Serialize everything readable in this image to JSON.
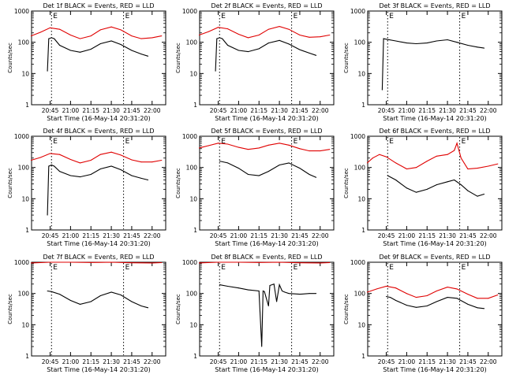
{
  "xlabel": "Start Time (16-May-14 20:31:20)",
  "ylabel": "Counts/sec",
  "xticks": [
    "20:45",
    "21:00",
    "21:15",
    "21:30",
    "21:45",
    "22:00"
  ],
  "yticks": [
    "1",
    "10",
    "100",
    "1000"
  ],
  "marker_label": "E",
  "colors": {
    "events": "#000000",
    "lld": "#e00000",
    "axes": "#000000"
  },
  "chart_data": [
    {
      "type": "line",
      "title": "Det 1f BLACK = Events, RED = LLD",
      "ylim": [
        1,
        1000
      ],
      "yscale": "log",
      "time_range": [
        "20:31:20",
        "22:10:00"
      ],
      "markers": [
        "20:46",
        "21:39"
      ],
      "series": [
        {
          "name": "LLD",
          "color": "#e00000",
          "x": [
            "20:31",
            "20:38",
            "20:45",
            "20:52",
            "21:00",
            "21:07",
            "21:15",
            "21:22",
            "21:30",
            "21:37",
            "21:45",
            "21:52",
            "22:00",
            "22:07"
          ],
          "values": [
            160,
            210,
            290,
            260,
            170,
            130,
            160,
            250,
            310,
            250,
            160,
            130,
            140,
            160
          ]
        },
        {
          "name": "Events",
          "color": "#000000",
          "x": [
            "20:43",
            "20:44",
            "20:46",
            "20:48",
            "20:52",
            "21:00",
            "21:07",
            "21:15",
            "21:22",
            "21:30",
            "21:37",
            "21:45",
            "21:52",
            "21:57"
          ],
          "values": [
            12,
            130,
            140,
            130,
            80,
            55,
            48,
            60,
            90,
            110,
            85,
            55,
            42,
            36
          ]
        }
      ]
    },
    {
      "type": "line",
      "title": "Det 2f BLACK = Events, RED = LLD",
      "ylim": [
        1,
        1000
      ],
      "yscale": "log",
      "time_range": [
        "20:31:20",
        "22:10:00"
      ],
      "markers": [
        "20:46",
        "21:39"
      ],
      "series": [
        {
          "name": "LLD",
          "color": "#e00000",
          "x": [
            "20:31",
            "20:38",
            "20:45",
            "20:52",
            "21:00",
            "21:07",
            "21:15",
            "21:22",
            "21:30",
            "21:37",
            "21:45",
            "21:52",
            "22:00",
            "22:07"
          ],
          "values": [
            170,
            220,
            300,
            270,
            180,
            140,
            170,
            260,
            320,
            260,
            170,
            145,
            150,
            170
          ]
        },
        {
          "name": "Events",
          "color": "#000000",
          "x": [
            "20:43",
            "20:44",
            "20:46",
            "20:48",
            "20:52",
            "21:00",
            "21:07",
            "21:15",
            "21:22",
            "21:30",
            "21:37",
            "21:45",
            "21:52",
            "21:57"
          ],
          "values": [
            12,
            130,
            140,
            130,
            80,
            55,
            50,
            62,
            95,
            115,
            88,
            58,
            45,
            38
          ]
        }
      ]
    },
    {
      "type": "line",
      "title": "Det 3f BLACK = Events, RED = LLD",
      "ylim": [
        1,
        1000
      ],
      "yscale": "log",
      "time_range": [
        "20:31:20",
        "22:10:00"
      ],
      "markers": [
        "20:46",
        "21:39"
      ],
      "series": [
        {
          "name": "Events",
          "color": "#000000",
          "x": [
            "20:42",
            "20:43",
            "20:45",
            "20:52",
            "21:00",
            "21:07",
            "21:15",
            "21:22",
            "21:30",
            "21:37",
            "21:45",
            "21:52",
            "21:57"
          ],
          "values": [
            3,
            130,
            125,
            110,
            95,
            90,
            95,
            110,
            120,
            100,
            80,
            70,
            65
          ]
        }
      ]
    },
    {
      "type": "line",
      "title": "Det 4f BLACK = Events, RED = LLD",
      "ylim": [
        1,
        1000
      ],
      "yscale": "log",
      "time_range": [
        "20:31:20",
        "22:10:00"
      ],
      "markers": [
        "20:46",
        "21:39"
      ],
      "series": [
        {
          "name": "LLD",
          "color": "#e00000",
          "x": [
            "20:31",
            "20:38",
            "20:45",
            "20:52",
            "21:00",
            "21:07",
            "21:15",
            "21:22",
            "21:30",
            "21:37",
            "21:45",
            "21:52",
            "22:00",
            "22:07"
          ],
          "values": [
            170,
            210,
            280,
            260,
            180,
            140,
            170,
            260,
            310,
            250,
            175,
            150,
            150,
            170
          ]
        },
        {
          "name": "Events",
          "color": "#000000",
          "x": [
            "20:43",
            "20:44",
            "20:46",
            "20:48",
            "20:52",
            "21:00",
            "21:07",
            "21:15",
            "21:22",
            "21:30",
            "21:37",
            "21:45",
            "21:52",
            "21:57"
          ],
          "values": [
            3,
            110,
            120,
            110,
            75,
            55,
            50,
            60,
            90,
            110,
            85,
            55,
            45,
            40
          ]
        }
      ]
    },
    {
      "type": "line",
      "title": "Det 5f BLACK = Events, RED = LLD",
      "ylim": [
        1,
        1000
      ],
      "yscale": "log",
      "time_range": [
        "20:31:20",
        "22:10:00"
      ],
      "markers": [
        "20:46",
        "21:39"
      ],
      "series": [
        {
          "name": "LLD",
          "color": "#e00000",
          "x": [
            "20:31",
            "20:38",
            "20:45",
            "20:52",
            "21:00",
            "21:07",
            "21:15",
            "21:22",
            "21:30",
            "21:37",
            "21:45",
            "21:52",
            "22:00",
            "22:07"
          ],
          "values": [
            420,
            500,
            600,
            560,
            440,
            380,
            420,
            520,
            600,
            520,
            400,
            340,
            340,
            380
          ]
        },
        {
          "name": "Events",
          "color": "#000000",
          "x": [
            "20:46",
            "20:52",
            "21:00",
            "21:07",
            "21:15",
            "21:22",
            "21:30",
            "21:37",
            "21:45",
            "21:52",
            "21:57"
          ],
          "values": [
            160,
            140,
            95,
            60,
            55,
            75,
            120,
            140,
            95,
            60,
            48
          ]
        }
      ]
    },
    {
      "type": "line",
      "title": "Det 6f BLACK = Events, RED = LLD",
      "ylim": [
        1,
        1000
      ],
      "yscale": "log",
      "time_range": [
        "20:31:20",
        "22:10:00"
      ],
      "markers": [
        "20:46",
        "21:39"
      ],
      "series": [
        {
          "name": "LLD",
          "color": "#e00000",
          "x": [
            "20:31",
            "20:35",
            "20:40",
            "20:45",
            "20:52",
            "21:00",
            "21:07",
            "21:15",
            "21:22",
            "21:30",
            "21:35",
            "21:37",
            "21:40",
            "21:45",
            "21:52",
            "22:00",
            "22:07"
          ],
          "values": [
            140,
            200,
            260,
            220,
            140,
            90,
            100,
            160,
            230,
            260,
            350,
            600,
            200,
            90,
            95,
            110,
            130
          ]
        },
        {
          "name": "Events",
          "color": "#000000",
          "x": [
            "20:46",
            "20:52",
            "21:00",
            "21:07",
            "21:15",
            "21:22",
            "21:30",
            "21:35",
            "21:40",
            "21:45",
            "21:52",
            "21:57"
          ],
          "values": [
            55,
            40,
            22,
            16,
            20,
            28,
            35,
            40,
            28,
            18,
            12,
            14
          ]
        }
      ]
    },
    {
      "type": "line",
      "title": "Det 7f BLACK = Events, RED = LLD",
      "ylim": [
        1,
        1000
      ],
      "yscale": "log",
      "time_range": [
        "20:31:20",
        "22:10:00"
      ],
      "markers": [
        "20:46",
        "21:39"
      ],
      "series": [
        {
          "name": "LLD",
          "color": "#e00000",
          "x": [
            "20:31",
            "20:45",
            "21:00",
            "21:15",
            "21:30",
            "21:45",
            "22:00",
            "22:07"
          ],
          "values": [
            950,
            1000,
            1000,
            980,
            1000,
            960,
            950,
            970
          ]
        },
        {
          "name": "Events",
          "color": "#000000",
          "x": [
            "20:43",
            "20:46",
            "20:52",
            "21:00",
            "21:07",
            "21:15",
            "21:22",
            "21:30",
            "21:37",
            "21:45",
            "21:52",
            "21:57"
          ],
          "values": [
            120,
            115,
            95,
            60,
            45,
            55,
            85,
            110,
            90,
            55,
            40,
            35
          ]
        }
      ]
    },
    {
      "type": "line",
      "title": "Det 8f BLACK = Events, RED = LLD",
      "ylim": [
        1,
        1000
      ],
      "yscale": "log",
      "time_range": [
        "20:31:20",
        "22:10:00"
      ],
      "markers": [
        "20:46",
        "21:39"
      ],
      "series": [
        {
          "name": "LLD",
          "color": "#e00000",
          "x": [
            "20:31",
            "20:45",
            "21:00",
            "21:15",
            "21:30",
            "21:45",
            "22:00",
            "22:07"
          ],
          "values": [
            950,
            1000,
            1000,
            980,
            1000,
            960,
            950,
            970
          ]
        },
        {
          "name": "Events",
          "color": "#000000",
          "x": [
            "20:46",
            "20:52",
            "21:00",
            "21:07",
            "21:15",
            "21:17",
            "21:18",
            "21:19",
            "21:22",
            "21:23",
            "21:26",
            "21:28",
            "21:30",
            "21:32",
            "21:34",
            "21:37",
            "21:45",
            "21:52",
            "21:57"
          ],
          "values": [
            190,
            170,
            150,
            130,
            120,
            2,
            120,
            115,
            40,
            180,
            200,
            55,
            190,
            120,
            110,
            100,
            95,
            100,
            100
          ]
        }
      ]
    },
    {
      "type": "line",
      "title": "Det 9f BLACK = Events, RED = LLD",
      "ylim": [
        1,
        1000
      ],
      "yscale": "log",
      "time_range": [
        "20:31:20",
        "22:10:00"
      ],
      "markers": [
        "20:46",
        "21:39"
      ],
      "series": [
        {
          "name": "LLD",
          "color": "#e00000",
          "x": [
            "20:31",
            "20:38",
            "20:45",
            "20:52",
            "21:00",
            "21:07",
            "21:15",
            "21:22",
            "21:30",
            "21:37",
            "21:45",
            "21:52",
            "22:00",
            "22:07"
          ],
          "values": [
            110,
            140,
            170,
            150,
            100,
            75,
            85,
            120,
            160,
            140,
            95,
            70,
            70,
            90
          ]
        },
        {
          "name": "Events",
          "color": "#000000",
          "x": [
            "20:45",
            "20:48",
            "20:52",
            "21:00",
            "21:07",
            "21:15",
            "21:22",
            "21:30",
            "21:37",
            "21:45",
            "21:52",
            "21:57"
          ],
          "values": [
            80,
            75,
            60,
            42,
            36,
            40,
            55,
            75,
            70,
            45,
            35,
            33
          ]
        }
      ]
    }
  ]
}
